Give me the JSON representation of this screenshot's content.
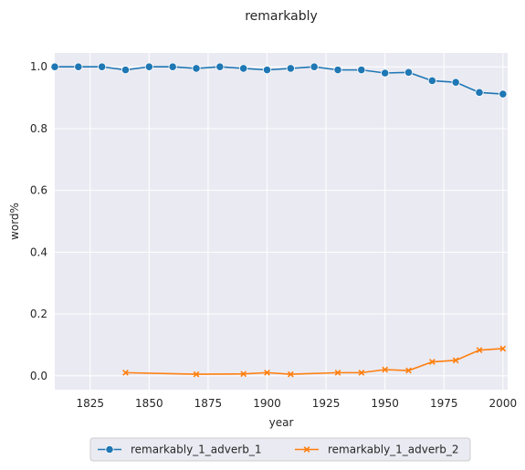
{
  "chart_data": {
    "type": "line",
    "title": "remarkably",
    "xlabel": "year",
    "ylabel": "word%",
    "xlim": [
      1810,
      2002
    ],
    "ylim": [
      -0.045,
      1.045
    ],
    "xticks": [
      1825,
      1850,
      1875,
      1900,
      1925,
      1950,
      1975,
      2000
    ],
    "yticks": [
      0.0,
      0.2,
      0.4,
      0.6,
      0.8,
      1.0
    ],
    "grid": true,
    "legend_position": "bottom-center",
    "series": [
      {
        "name": "remarkably_1_adverb_1",
        "color": "#1f77b4",
        "marker": "circle",
        "x": [
          1810,
          1820,
          1830,
          1840,
          1850,
          1860,
          1870,
          1880,
          1890,
          1900,
          1910,
          1920,
          1930,
          1940,
          1950,
          1960,
          1970,
          1980,
          1990,
          2000
        ],
        "y": [
          1.0,
          1.0,
          1.0,
          0.99,
          1.0,
          1.0,
          0.995,
          1.0,
          0.995,
          0.99,
          0.995,
          1.0,
          0.99,
          0.99,
          0.98,
          0.982,
          0.955,
          0.95,
          0.917,
          0.912
        ]
      },
      {
        "name": "remarkably_1_adverb_2",
        "color": "#ff7f0e",
        "marker": "x",
        "x": [
          1840,
          1870,
          1890,
          1900,
          1910,
          1930,
          1940,
          1950,
          1960,
          1970,
          1980,
          1990,
          2000
        ],
        "y": [
          0.01,
          0.005,
          0.006,
          0.01,
          0.005,
          0.01,
          0.01,
          0.02,
          0.017,
          0.045,
          0.05,
          0.083,
          0.088
        ]
      }
    ]
  }
}
